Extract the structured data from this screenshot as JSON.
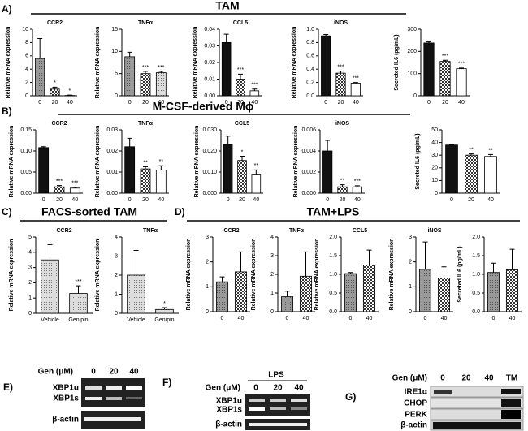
{
  "panels": [
    {
      "label": "A)",
      "title": "TAM"
    },
    {
      "label": "B)",
      "title": "M-CSF-derived Mϕ"
    },
    {
      "label": "C)",
      "title": "FACS-sorted TAM"
    },
    {
      "label": "D)",
      "title": "TAM+LPS"
    }
  ],
  "chart_data": [
    {
      "type": "bar",
      "title": "CCR2",
      "ylabel": "Relative mRNA expression",
      "categories": [
        "0",
        "20",
        "40"
      ],
      "values": [
        5.6,
        1.0,
        0.05
      ],
      "errors": [
        3.0,
        0.3,
        0.05
      ],
      "annotations": [
        null,
        "*",
        "*"
      ],
      "fills": [
        "grey",
        "checker",
        "dots"
      ],
      "ylim": [
        0,
        10
      ],
      "yticks": [
        0,
        2,
        4,
        6,
        8,
        10
      ]
    },
    {
      "type": "bar",
      "title": "TNFα",
      "ylabel": "Relative mRNA expression",
      "categories": [
        "0",
        "20",
        "40"
      ],
      "values": [
        8.8,
        5.0,
        5.2
      ],
      "errors": [
        1.0,
        0.5,
        0.3
      ],
      "annotations": [
        null,
        "***",
        "***"
      ],
      "fills": [
        "grey",
        "checker",
        "dots"
      ],
      "ylim": [
        0,
        15
      ],
      "yticks": [
        0,
        5,
        10,
        15
      ]
    },
    {
      "type": "bar",
      "title": "CCL5",
      "ylabel": "Relative mRNA expression",
      "categories": [
        "0",
        "20",
        "40"
      ],
      "values": [
        0.032,
        0.01,
        0.003
      ],
      "errors": [
        0.005,
        0.003,
        0.001
      ],
      "annotations": [
        null,
        "***",
        "***"
      ],
      "fills": [
        "black",
        "checker",
        "white"
      ],
      "ylim": [
        0,
        0.04
      ],
      "yticks": [
        {
          "value": 0,
          "label": "0.00"
        },
        {
          "value": 0.01,
          "label": "0.01"
        },
        {
          "value": 0.02,
          "label": "0.02"
        },
        {
          "value": 0.03,
          "label": "0.03"
        },
        {
          "value": 0.04,
          "label": "0.04"
        }
      ]
    },
    {
      "type": "bar",
      "title": "iNOS",
      "ylabel": "Relative mRNA expression",
      "categories": [
        "0",
        "20",
        "40"
      ],
      "values": [
        0.9,
        0.34,
        0.19
      ],
      "errors": [
        0.02,
        0.03,
        0.01
      ],
      "annotations": [
        null,
        "***",
        "***"
      ],
      "fills": [
        "black",
        "checker",
        "white"
      ],
      "ylim": [
        0,
        1
      ],
      "yticks": [
        {
          "value": 0,
          "label": "0.0"
        },
        {
          "value": 0.2,
          "label": "0.2"
        },
        {
          "value": 0.4,
          "label": "0.4"
        },
        {
          "value": 0.6,
          "label": "0.6"
        },
        {
          "value": 0.8,
          "label": "0.8"
        },
        {
          "value": 1,
          "label": "1.0"
        }
      ]
    },
    {
      "type": "bar",
      "ylabel": "Secreted IL6 (pg/mL)",
      "categories": [
        "0",
        "20",
        "40"
      ],
      "values": [
        238,
        155,
        122
      ],
      "errors": [
        5,
        5,
        3
      ],
      "annotations": [
        null,
        "***",
        "***"
      ],
      "fills": [
        "black",
        "checker",
        "white"
      ],
      "ylim": [
        0,
        300
      ],
      "yticks": [
        0,
        100,
        200,
        300
      ]
    },
    {
      "type": "bar",
      "title": "CCR2",
      "ylabel": "Relative mRNA expression",
      "categories": [
        "0",
        "20",
        "40"
      ],
      "values": [
        0.108,
        0.015,
        0.012
      ],
      "errors": [
        0.002,
        0.003,
        0.002
      ],
      "annotations": [
        null,
        "***",
        "***"
      ],
      "fills": [
        "black",
        "checker",
        "white"
      ],
      "ylim": [
        0,
        0.15
      ],
      "yticks": [
        {
          "value": 0,
          "label": "0.00"
        },
        {
          "value": 0.05,
          "label": "0.05"
        },
        {
          "value": 0.1,
          "label": "0.10"
        },
        {
          "value": 0.15,
          "label": "0.15"
        }
      ]
    },
    {
      "type": "bar",
      "title": "TNFα",
      "ylabel": "Relative mRNA expression",
      "categories": [
        "0",
        "20",
        "40"
      ],
      "values": [
        0.022,
        0.0115,
        0.011
      ],
      "errors": [
        0.004,
        0.001,
        0.002
      ],
      "annotations": [
        null,
        "**",
        "**"
      ],
      "fills": [
        "black",
        "checker",
        "white"
      ],
      "ylim": [
        0,
        0.03
      ],
      "yticks": [
        {
          "value": 0,
          "label": "0.00"
        },
        {
          "value": 0.01,
          "label": "0.01"
        },
        {
          "value": 0.02,
          "label": "0.02"
        },
        {
          "value": 0.03,
          "label": "0.03"
        }
      ]
    },
    {
      "type": "bar",
      "title": "CCL5",
      "ylabel": "Relative mRNA expression",
      "categories": [
        "0",
        "20",
        "40"
      ],
      "values": [
        0.023,
        0.0155,
        0.009
      ],
      "errors": [
        0.004,
        0.002,
        0.002
      ],
      "annotations": [
        null,
        "*",
        "**"
      ],
      "fills": [
        "black",
        "checker",
        "white"
      ],
      "ylim": [
        0,
        0.03
      ],
      "yticks": [
        {
          "value": 0,
          "label": "0.000"
        },
        {
          "value": 0.01,
          "label": "0.010"
        },
        {
          "value": 0.02,
          "label": "0.020"
        },
        {
          "value": 0.03,
          "label": "0.030"
        }
      ]
    },
    {
      "type": "bar",
      "title": "iNOS",
      "ylabel": "Relative mRNA expression",
      "categories": [
        "0",
        "20",
        "40"
      ],
      "values": [
        0.004,
        0.0006,
        0.0006
      ],
      "errors": [
        0.001,
        0.0002,
        0.0001
      ],
      "annotations": [
        null,
        "**",
        "***"
      ],
      "fills": [
        "black",
        "checker",
        "white"
      ],
      "ylim": [
        0,
        0.006
      ],
      "yticks": [
        {
          "value": 0,
          "label": "0.000"
        },
        {
          "value": 0.002,
          "label": "0.002"
        },
        {
          "value": 0.004,
          "label": "0.004"
        },
        {
          "value": 0.006,
          "label": "0.006"
        }
      ]
    },
    {
      "type": "bar",
      "ylabel": "Secreted IL6 (pg/mL)",
      "categories": [
        "0",
        "20",
        "40"
      ],
      "values": [
        38,
        30,
        29
      ],
      "errors": [
        0.5,
        1,
        1.5
      ],
      "annotations": [
        null,
        "**",
        "**"
      ],
      "fills": [
        "black",
        "checker",
        "white"
      ],
      "ylim": [
        0,
        50
      ],
      "yticks": [
        0,
        10,
        20,
        30,
        40,
        50
      ]
    },
    {
      "type": "bar",
      "title": "CCR2",
      "ylabel": "Relative mRNA expression",
      "categories": [
        "Vehicle",
        "Genipin"
      ],
      "values": [
        3.5,
        1.3
      ],
      "errors": [
        1.0,
        0.5
      ],
      "annotations": [
        null,
        "***"
      ],
      "fills": [
        "dots",
        "dots"
      ],
      "ylim": [
        0,
        5
      ],
      "yticks": [
        0,
        1,
        2,
        3,
        4,
        5
      ]
    },
    {
      "type": "bar",
      "title": "TNFα",
      "ylabel": "Relative mRNA expression",
      "categories": [
        "Vehicle",
        "Genipin"
      ],
      "values": [
        2.0,
        0.2
      ],
      "errors": [
        1.3,
        0.1
      ],
      "annotations": [
        null,
        "*"
      ],
      "fills": [
        "dots",
        "dots"
      ],
      "ylim": [
        0,
        4
      ],
      "yticks": [
        0,
        1,
        2,
        3,
        4
      ]
    },
    {
      "type": "bar",
      "title": "CCR2",
      "ylabel": "Relative mRNA expression",
      "categories": [
        "0",
        "40"
      ],
      "values": [
        1.2,
        1.6
      ],
      "errors": [
        0.2,
        0.8
      ],
      "fills": [
        "grey",
        "checker"
      ],
      "ylim": [
        0,
        3
      ],
      "yticks": [
        0,
        1,
        2,
        3
      ]
    },
    {
      "type": "bar",
      "title": "TNFα",
      "ylabel": "Relative mRNA expression",
      "categories": [
        "0",
        "40"
      ],
      "values": [
        0.8,
        1.9
      ],
      "errors": [
        0.3,
        1.3
      ],
      "fills": [
        "grey",
        "checker"
      ],
      "ylim": [
        0,
        4
      ],
      "yticks": [
        0,
        1,
        2,
        3,
        4
      ]
    },
    {
      "type": "bar",
      "title": "CCL5",
      "ylabel": "Relative mRNA expression",
      "categories": [
        "0",
        "40"
      ],
      "values": [
        1.02,
        1.25
      ],
      "errors": [
        0.03,
        0.4
      ],
      "fills": [
        "grey",
        "checker"
      ],
      "ylim": [
        0,
        2
      ],
      "yticks": [
        {
          "value": 0,
          "label": "0.0"
        },
        {
          "value": 0.5,
          "label": "0.5"
        },
        {
          "value": 1,
          "label": "1.0"
        },
        {
          "value": 1.5,
          "label": "1.5"
        },
        {
          "value": 2,
          "label": "2.0"
        }
      ]
    },
    {
      "type": "bar",
      "title": "iNOS",
      "ylabel": "Relative mRNA expression",
      "categories": [
        "0",
        "40"
      ],
      "values": [
        1.7,
        1.35
      ],
      "errors": [
        1.1,
        0.45
      ],
      "fills": [
        "grey",
        "checker"
      ],
      "ylim": [
        0,
        3
      ],
      "yticks": [
        0,
        1,
        2,
        3
      ]
    },
    {
      "type": "bar",
      "ylabel": "Secreted IL6 (pg/mL)",
      "categories": [
        "0",
        "40"
      ],
      "values": [
        1.05,
        1.12
      ],
      "errors": [
        0.25,
        0.55
      ],
      "fills": [
        "grey",
        "checker"
      ],
      "ylim": [
        0,
        2
      ],
      "yticks": [
        {
          "value": 0,
          "label": "0.0"
        },
        {
          "value": 0.5,
          "label": "0.5"
        },
        {
          "value": 1,
          "label": "1.0"
        },
        {
          "value": 1.5,
          "label": "1.5"
        },
        {
          "value": 2,
          "label": "2.0"
        }
      ]
    }
  ],
  "gels": {
    "E": {
      "label": "E)",
      "dose_label": "Gen (μM)",
      "lanes": [
        "0",
        "20",
        "40"
      ],
      "bands": [
        "XBP1u",
        "XBP1s",
        "β-actin"
      ]
    },
    "F": {
      "label": "F)",
      "treatment": "LPS",
      "dose_label": "Gen (μM)",
      "lanes": [
        "0",
        "20",
        "40"
      ],
      "bands": [
        "XBP1u",
        "XBP1s",
        "β-actin"
      ]
    },
    "G": {
      "label": "G)",
      "dose_label": "Gen (μM)",
      "lanes": [
        "0",
        "20",
        "40",
        "TM"
      ],
      "bands": [
        "IRE1α",
        "CHOP",
        "PERK",
        "β-actin"
      ]
    }
  }
}
